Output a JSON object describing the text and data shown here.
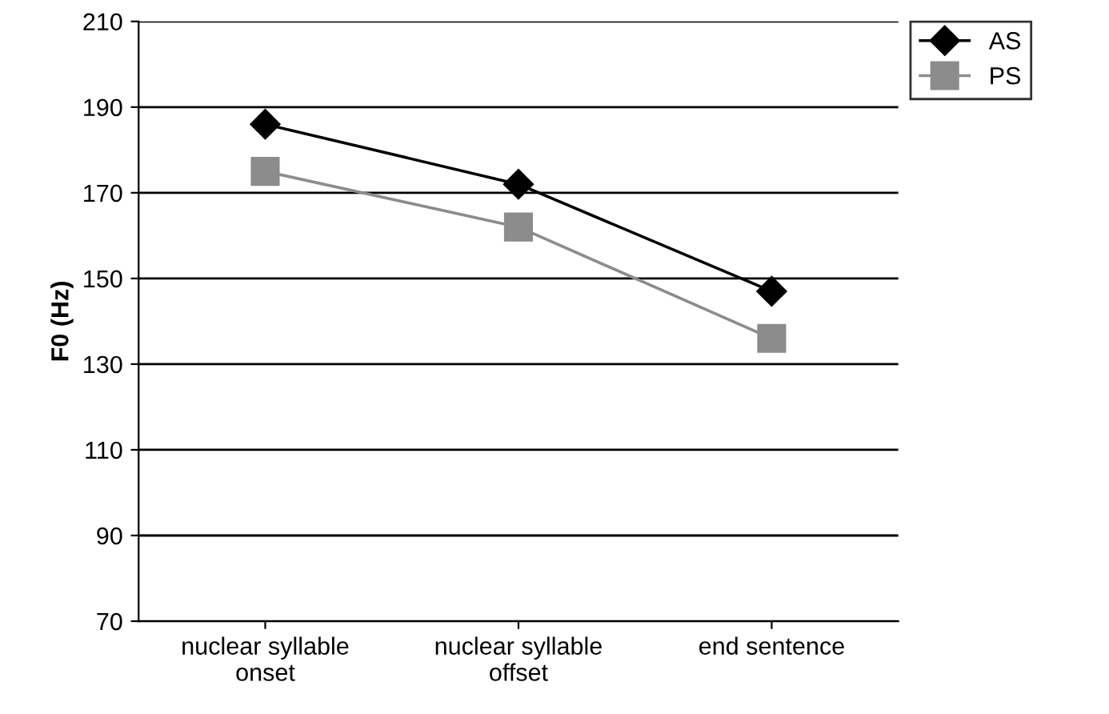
{
  "chart_data": {
    "type": "line",
    "ylabel": "F0 (Hz)",
    "categories": [
      "nuclear syllable\nonset",
      "nuclear syllable\noffset",
      "end sentence"
    ],
    "series": [
      {
        "name": "AS",
        "color": "#000000",
        "values": [
          186,
          172,
          147
        ],
        "marker": "diamond"
      },
      {
        "name": "PS",
        "color": "#8c8c8c",
        "values": [
          175,
          162,
          136
        ],
        "marker": "square"
      }
    ],
    "ylim": [
      70,
      210
    ],
    "yticks": [
      70,
      90,
      110,
      130,
      150,
      170,
      190,
      210
    ],
    "grid": "y",
    "legend": "top right"
  }
}
